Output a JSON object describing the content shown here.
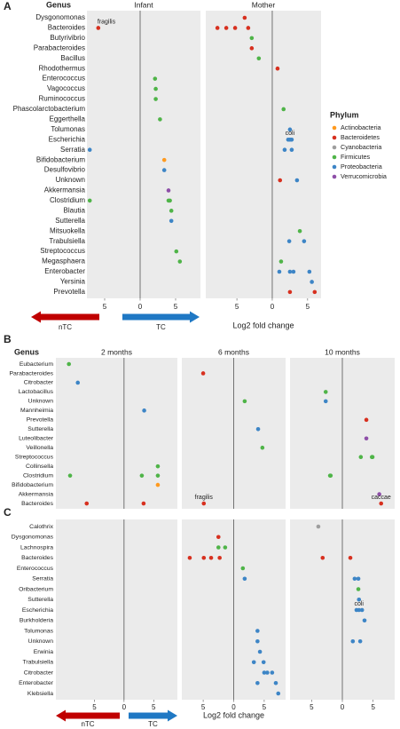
{
  "chart_data": [
    {
      "type": "scatter",
      "panel": "A",
      "y_header": "Genus",
      "x_label": "Log2 fold change",
      "arrows": [
        {
          "label": "nTC",
          "color": "#c00000"
        },
        {
          "label": "TC",
          "color": "#1f78c4"
        }
      ],
      "legend": {
        "title": "Phylum",
        "items": [
          {
            "name": "Actinobacteria",
            "color": "#ff9a1f"
          },
          {
            "name": "Bacteroidetes",
            "color": "#d7301f"
          },
          {
            "name": "Cyanobacteria",
            "color": "#9e9e9e"
          },
          {
            "name": "Firmicutes",
            "color": "#4fb448"
          },
          {
            "name": "Proteobacteria",
            "color": "#3d85c6"
          },
          {
            "name": "Verrucomicrobia",
            "color": "#8e4fa8"
          }
        ]
      },
      "categories": [
        "Dysgonomonas",
        "Bacteroides",
        "Butyrivibrio",
        "Parabacteroides",
        "Bacillus",
        "Rhodothermus",
        "Enterococcus",
        "Vagococcus",
        "Ruminococcus",
        "Phascolarctobacterium",
        "Eggerthella",
        "Tolumonas",
        "Escherichia",
        "Serratia",
        "Bifidobacterium",
        "Desulfovibrio",
        "Unknown",
        "Akkermansia",
        "Clostridium",
        "Blautia",
        "Sutterella",
        "Mitsuokella",
        "Trabulsiella",
        "Streptococcus",
        "Megasphaera",
        "Enterobacter",
        "Yersinia",
        "Prevotella"
      ],
      "facets": [
        {
          "title": "Infant",
          "xlim": [
            -7.5,
            8.5
          ],
          "xticks": [
            {
              "value": -5,
              "label": "5"
            },
            0,
            5
          ],
          "vline": 0,
          "x": [
            -5.9,
            2.1,
            2.2,
            2.2,
            2.8,
            -7.1,
            3.4,
            3.4,
            4.0,
            -7.1,
            4.0,
            4.2,
            4.4,
            4.4,
            5.1,
            5.6
          ],
          "y": [
            "Bacteroides",
            "Enterococcus",
            "Vagococcus",
            "Ruminococcus",
            "Eggerthella",
            "Serratia",
            "Bifidobacterium",
            "Desulfovibrio",
            "Akkermansia",
            "Clostridium",
            "Clostridium",
            "Clostridium",
            "Blautia",
            "Sutterella",
            "Streptococcus",
            "Megasphaera"
          ],
          "phylum": [
            "Bacteroidetes",
            "Firmicutes",
            "Firmicutes",
            "Firmicutes",
            "Firmicutes",
            "Proteobacteria",
            "Actinobacteria",
            "Proteobacteria",
            "Verrucomicrobia",
            "Firmicutes",
            "Firmicutes",
            "Firmicutes",
            "Firmicutes",
            "Proteobacteria",
            "Firmicutes",
            "Firmicutes"
          ],
          "annotations": [
            {
              "text": "fragilis",
              "x": -4.75,
              "y": "Bacteroides"
            }
          ]
        },
        {
          "title": "Mother",
          "xlim": [
            -9.4,
            6.9
          ],
          "xticks": [
            {
              "value": -5,
              "label": "5"
            },
            0,
            5
          ],
          "vline": 0,
          "x": [
            -3.9,
            -7.75,
            -6.5,
            -5.25,
            -3.4,
            -2.9,
            -2.9,
            -1.9,
            0.75,
            1.6,
            2.5,
            2.25,
            2.5,
            2.75,
            1.75,
            2.75,
            1.1,
            3.5,
            3.9,
            2.4,
            4.5,
            1.25,
            1.0,
            2.5,
            3.0,
            5.25,
            5.6,
            2.5,
            6.0
          ],
          "y": [
            "Dysgonomonas",
            "Bacteroides",
            "Bacteroides",
            "Bacteroides",
            "Bacteroides",
            "Butyrivibrio",
            "Parabacteroides",
            "Bacillus",
            "Rhodothermus",
            "Phascolarctobacterium",
            "Tolumonas",
            "Escherichia",
            "Escherichia",
            "Escherichia",
            "Serratia",
            "Serratia",
            "Unknown",
            "Unknown",
            "Mitsuokella",
            "Trabulsiella",
            "Trabulsiella",
            "Megasphaera",
            "Enterobacter",
            "Enterobacter",
            "Enterobacter",
            "Enterobacter",
            "Yersinia",
            "Prevotella",
            "Prevotella"
          ],
          "phylum": [
            "Bacteroidetes",
            "Bacteroidetes",
            "Bacteroidetes",
            "Bacteroidetes",
            "Bacteroidetes",
            "Firmicutes",
            "Bacteroidetes",
            "Firmicutes",
            "Bacteroidetes",
            "Firmicutes",
            "Proteobacteria",
            "Proteobacteria",
            "Proteobacteria",
            "Proteobacteria",
            "Proteobacteria",
            "Proteobacteria",
            "Bacteroidetes",
            "Proteobacteria",
            "Firmicutes",
            "Proteobacteria",
            "Proteobacteria",
            "Firmicutes",
            "Proteobacteria",
            "Proteobacteria",
            "Proteobacteria",
            "Proteobacteria",
            "Proteobacteria",
            "Bacteroidetes",
            "Bacteroidetes"
          ],
          "annotations": [
            {
              "text": "coli",
              "x": 2.5,
              "y": "Escherichia"
            }
          ]
        }
      ]
    },
    {
      "type": "scatter",
      "panel": "B",
      "y_header": "Genus",
      "categories": [
        "Eubacterium",
        "Parabacteroides",
        "Citrobacter",
        "Lactobacillus",
        "Unknown",
        "Mannheimia",
        "Prevotella",
        "Sutterella",
        "Luteolibacter",
        "Veillonella",
        "Streptococcus",
        "Collinsella",
        "Clostridium",
        "Bifidobacterium",
        "Akkermansia",
        "Bacteroides"
      ],
      "facets": [
        {
          "title": "2 months",
          "xlim": [
            -11.5,
            9
          ],
          "vline": 0,
          "x": [
            -9.3,
            -7.8,
            3.4,
            5.7,
            -9.1,
            3.0,
            5.7,
            5.7,
            -6.3,
            3.3
          ],
          "y": [
            "Eubacterium",
            "Citrobacter",
            "Mannheimia",
            "Collinsella",
            "Clostridium",
            "Clostridium",
            "Clostridium",
            "Bifidobacterium",
            "Bacteroides",
            "Bacteroides"
          ],
          "phylum": [
            "Firmicutes",
            "Proteobacteria",
            "Proteobacteria",
            "Firmicutes",
            "Firmicutes",
            "Firmicutes",
            "Firmicutes",
            "Actinobacteria",
            "Bacteroidetes",
            "Bacteroidetes"
          ]
        },
        {
          "title": "6 months",
          "xlim": [
            -8.5,
            8.5
          ],
          "vline": 0,
          "x": [
            -5.0,
            1.8,
            4.0,
            4.7,
            -4.9
          ],
          "y": [
            "Parabacteroides",
            "Unknown",
            "Sutterella",
            "Veillonella",
            "Bacteroides"
          ],
          "phylum": [
            "Bacteroidetes",
            "Firmicutes",
            "Proteobacteria",
            "Firmicutes",
            "Bacteroidetes"
          ],
          "annotations": [
            {
              "text": "fragilis",
              "x": -4.9,
              "y": "Bacteroides"
            }
          ]
        },
        {
          "title": "10 months",
          "xlim": [
            -8.5,
            8.5
          ],
          "vline": 0,
          "x": [
            -2.7,
            -2.7,
            3.9,
            3.9,
            3.0,
            4.8,
            4.9,
            -2.0,
            -1.9,
            6.0,
            6.3
          ],
          "y": [
            "Lactobacillus",
            "Unknown",
            "Prevotella",
            "Luteolibacter",
            "Streptococcus",
            "Streptococcus",
            "Streptococcus",
            "Clostridium",
            "Clostridium",
            "Akkermansia",
            "Bacteroides"
          ],
          "phylum": [
            "Firmicutes",
            "Proteobacteria",
            "Bacteroidetes",
            "Verrucomicrobia",
            "Firmicutes",
            "Firmicutes",
            "Firmicutes",
            "Firmicutes",
            "Firmicutes",
            "Verrucomicrobia",
            "Bacteroidetes"
          ],
          "annotations": [
            {
              "text": "caccae",
              "x": 6.3,
              "y": "Bacteroides"
            }
          ]
        }
      ]
    },
    {
      "type": "scatter",
      "panel": "C",
      "x_label": "Log2 fold change",
      "arrows": [
        {
          "label": "nTC",
          "color": "#c00000"
        },
        {
          "label": "TC",
          "color": "#1f78c4"
        }
      ],
      "categories": [
        "Calothrix",
        "Dysgonomonas",
        "Lachnospira",
        "Bacteroides",
        "Enterococcus",
        "Serratia",
        "Oribacterium",
        "Sutterella",
        "Escherichia",
        "Burkholderia",
        "Tolumonas",
        "Unknown",
        "Erwinia",
        "Trabulsiella",
        "Citrobacter",
        "Enterobacter",
        "Klebsiella"
      ],
      "facets": [
        {
          "xlim": [
            -11.5,
            9
          ],
          "xticks": [
            {
              "value": -5,
              "label": "5"
            },
            0,
            5
          ],
          "vline": 0,
          "x": [],
          "y": [],
          "phylum": []
        },
        {
          "xlim": [
            -8.5,
            8.5
          ],
          "xticks": [
            {
              "value": -5,
              "label": "5"
            },
            0,
            5
          ],
          "vline": 0,
          "x": [
            -2.5,
            -2.5,
            -1.4,
            -7.2,
            -4.9,
            -3.7,
            -2.3,
            1.5,
            1.8,
            3.9,
            3.9,
            4.3,
            3.3,
            4.9,
            5.0,
            5.5,
            6.3,
            3.9,
            6.9,
            7.3
          ],
          "y": [
            "Dysgonomonas",
            "Lachnospira",
            "Lachnospira",
            "Bacteroides",
            "Bacteroides",
            "Bacteroides",
            "Bacteroides",
            "Enterococcus",
            "Serratia",
            "Tolumonas",
            "Unknown",
            "Erwinia",
            "Trabulsiella",
            "Trabulsiella",
            "Citrobacter",
            "Citrobacter",
            "Citrobacter",
            "Enterobacter",
            "Enterobacter",
            "Klebsiella"
          ],
          "phylum": [
            "Bacteroidetes",
            "Firmicutes",
            "Firmicutes",
            "Bacteroidetes",
            "Bacteroidetes",
            "Bacteroidetes",
            "Bacteroidetes",
            "Firmicutes",
            "Proteobacteria",
            "Proteobacteria",
            "Proteobacteria",
            "Proteobacteria",
            "Proteobacteria",
            "Proteobacteria",
            "Proteobacteria",
            "Proteobacteria",
            "Proteobacteria",
            "Proteobacteria",
            "Proteobacteria",
            "Proteobacteria"
          ]
        },
        {
          "xlim": [
            -8.5,
            8.5
          ],
          "xticks": [
            {
              "value": -5,
              "label": "5"
            },
            0,
            5
          ],
          "vline": 0,
          "x": [
            -3.9,
            -3.2,
            1.3,
            2.0,
            2.6,
            2.6,
            2.7,
            2.3,
            2.7,
            3.2,
            3.6,
            1.7,
            2.9
          ],
          "y": [
            "Calothrix",
            "Bacteroides",
            "Bacteroides",
            "Serratia",
            "Serratia",
            "Oribacterium",
            "Sutterella",
            "Escherichia",
            "Escherichia",
            "Escherichia",
            "Burkholderia",
            "Unknown",
            "Unknown"
          ],
          "phylum": [
            "Cyanobacteria",
            "Bacteroidetes",
            "Bacteroidetes",
            "Proteobacteria",
            "Proteobacteria",
            "Firmicutes",
            "Proteobacteria",
            "Proteobacteria",
            "Proteobacteria",
            "Proteobacteria",
            "Proteobacteria",
            "Proteobacteria",
            "Proteobacteria"
          ],
          "annotations": [
            {
              "text": "coli",
              "x": 2.7,
              "y": "Escherichia"
            }
          ]
        }
      ]
    }
  ]
}
